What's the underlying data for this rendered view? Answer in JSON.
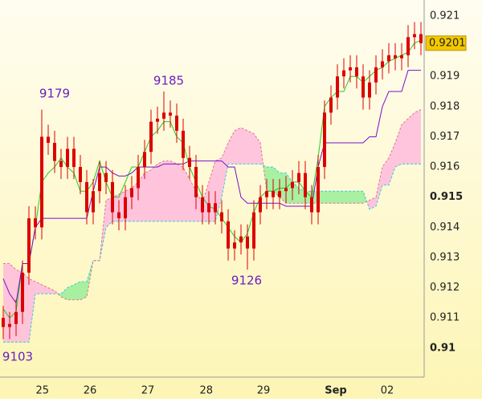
{
  "chart_data": {
    "type": "candlestick",
    "open": [
      0.911,
      0.9107,
      0.9108,
      0.9112,
      0.9125,
      0.9143,
      0.914,
      0.917,
      0.9168,
      0.9162,
      0.916,
      0.9166,
      0.916,
      0.9155,
      0.9145,
      0.9152,
      0.9158,
      0.9155,
      0.9145,
      0.9143,
      0.915,
      0.9153,
      0.916,
      0.9165,
      0.9175,
      0.9176,
      0.9178,
      0.9177,
      0.9172,
      0.9163,
      0.916,
      0.915,
      0.9145,
      0.9148,
      0.9145,
      0.9142,
      0.9133,
      0.9135,
      0.9137,
      0.9133,
      0.9145,
      0.915,
      0.9152,
      0.915,
      0.9152,
      0.9153,
      0.9155,
      0.9158,
      0.915,
      0.9145,
      0.916,
      0.9178,
      0.9183,
      0.919,
      0.9192,
      0.9193,
      0.919,
      0.9183,
      0.9188,
      0.9193,
      0.9195,
      0.9197,
      0.9196,
      0.9197,
      0.9203,
      0.9204
    ],
    "high": [
      0.9114,
      0.9112,
      0.9116,
      0.9129,
      0.9147,
      0.9147,
      0.9179,
      0.9174,
      0.9172,
      0.9166,
      0.917,
      0.917,
      0.9164,
      0.9159,
      0.9156,
      0.9162,
      0.9162,
      0.9159,
      0.9149,
      0.9154,
      0.9157,
      0.9164,
      0.9169,
      0.9179,
      0.918,
      0.9185,
      0.9182,
      0.9181,
      0.9176,
      0.9167,
      0.9164,
      0.9154,
      0.9152,
      0.9152,
      0.9149,
      0.9146,
      0.9139,
      0.9141,
      0.9141,
      0.9149,
      0.9154,
      0.9156,
      0.9156,
      0.9156,
      0.9157,
      0.9159,
      0.9162,
      0.9162,
      0.9154,
      0.9164,
      0.9182,
      0.9187,
      0.9194,
      0.9196,
      0.9197,
      0.9197,
      0.9194,
      0.9192,
      0.9197,
      0.9199,
      0.9201,
      0.9201,
      0.9201,
      0.9207,
      0.9208,
      0.9208
    ],
    "low": [
      0.9103,
      0.9103,
      0.9104,
      0.9108,
      0.9121,
      0.9136,
      0.9136,
      0.9164,
      0.9158,
      0.9156,
      0.9156,
      0.9156,
      0.9151,
      0.9141,
      0.9141,
      0.9148,
      0.9151,
      0.9141,
      0.9139,
      0.9139,
      0.9146,
      0.9149,
      0.9156,
      0.9161,
      0.9171,
      0.9172,
      0.9173,
      0.9168,
      0.9159,
      0.9156,
      0.9146,
      0.9141,
      0.9141,
      0.9141,
      0.9138,
      0.9129,
      0.9129,
      0.9131,
      0.9126,
      0.9129,
      0.9141,
      0.9146,
      0.9146,
      0.9146,
      0.9148,
      0.9149,
      0.9151,
      0.9146,
      0.9141,
      0.9141,
      0.9156,
      0.9174,
      0.9179,
      0.9186,
      0.9188,
      0.9186,
      0.9179,
      0.9179,
      0.9184,
      0.9189,
      0.9191,
      0.9192,
      0.9192,
      0.9193,
      0.9199,
      0.9197
    ],
    "close": [
      0.9107,
      0.9108,
      0.9112,
      0.9125,
      0.9143,
      0.914,
      0.917,
      0.9168,
      0.9162,
      0.916,
      0.9166,
      0.916,
      0.9155,
      0.9145,
      0.9152,
      0.9158,
      0.9155,
      0.9145,
      0.9143,
      0.915,
      0.9153,
      0.916,
      0.9165,
      0.9175,
      0.9176,
      0.9178,
      0.9177,
      0.9172,
      0.9163,
      0.916,
      0.915,
      0.9145,
      0.9148,
      0.9145,
      0.9142,
      0.9133,
      0.9135,
      0.9137,
      0.9133,
      0.9145,
      0.915,
      0.9152,
      0.915,
      0.9152,
      0.9153,
      0.9155,
      0.9158,
      0.915,
      0.9145,
      0.916,
      0.9178,
      0.9183,
      0.919,
      0.9192,
      0.9193,
      0.919,
      0.9183,
      0.9188,
      0.9193,
      0.9195,
      0.9197,
      0.9196,
      0.9197,
      0.9203,
      0.9204,
      0.9201
    ],
    "candle_color": "#dd0000",
    "lines": [
      {
        "color": "#22cc22",
        "values": [
          0.9113,
          0.911,
          0.9112,
          0.9128,
          0.9128,
          0.914,
          0.9155,
          0.9158,
          0.916,
          0.9163,
          0.916,
          0.9158,
          0.9152,
          0.9152,
          0.9155,
          0.9162,
          0.9155,
          0.915,
          0.915,
          0.9155,
          0.916,
          0.916,
          0.9165,
          0.917,
          0.9172,
          0.9175,
          0.9175,
          0.917,
          0.9168,
          0.916,
          0.9155,
          0.915,
          0.9147,
          0.9146,
          0.9143,
          0.914,
          0.9137,
          0.9135,
          0.9138,
          0.9145,
          0.915,
          0.9152,
          0.9152,
          0.9153,
          0.9153,
          0.9155,
          0.9155,
          0.9152,
          0.915,
          0.9163,
          0.918,
          0.9183,
          0.9185,
          0.9185,
          0.919,
          0.919,
          0.9188,
          0.919,
          0.9192,
          0.9193,
          0.9195,
          0.9196,
          0.9197,
          0.9198,
          0.9201,
          0.9202
        ]
      },
      {
        "color": "#7711cc",
        "values": [
          0.9123,
          0.9118,
          0.9115,
          0.9128,
          0.9128,
          0.914,
          0.9143,
          0.9143,
          0.9143,
          0.9143,
          0.9143,
          0.9143,
          0.9143,
          0.9143,
          0.9152,
          0.916,
          0.916,
          0.9158,
          0.9157,
          0.9157,
          0.9158,
          0.916,
          0.916,
          0.916,
          0.916,
          0.9161,
          0.9161,
          0.9161,
          0.9161,
          0.9162,
          0.9162,
          0.9162,
          0.9162,
          0.9162,
          0.9162,
          0.916,
          0.916,
          0.915,
          0.9148,
          0.9148,
          0.9148,
          0.9148,
          0.9148,
          0.9148,
          0.9147,
          0.9147,
          0.9147,
          0.9147,
          0.9147,
          0.916,
          0.9168,
          0.9168,
          0.9168,
          0.9168,
          0.9168,
          0.9168,
          0.9168,
          0.917,
          0.917,
          0.918,
          0.9185,
          0.9185,
          0.9185,
          0.9192,
          0.9192,
          0.9192
        ]
      }
    ],
    "cloud": {
      "span_a": {
        "color": "#33ccdd",
        "values": [
          0.9102,
          0.9102,
          0.9102,
          0.9102,
          0.9102,
          0.9118,
          0.9118,
          0.9118,
          0.9118,
          0.9118,
          0.912,
          0.9121,
          0.9122,
          0.9122,
          0.9129,
          0.9129,
          0.914,
          0.9142,
          0.9142,
          0.9142,
          0.9142,
          0.9142,
          0.9142,
          0.9142,
          0.9142,
          0.9142,
          0.9142,
          0.9142,
          0.9142,
          0.9142,
          0.9142,
          0.9142,
          0.9142,
          0.9142,
          0.915,
          0.9161,
          0.9161,
          0.9161,
          0.9161,
          0.9161,
          0.9161,
          0.916,
          0.916,
          0.9158,
          0.9158,
          0.9155,
          0.9153,
          0.9152,
          0.9152,
          0.9152,
          0.9152,
          0.9152,
          0.9152,
          0.9152,
          0.9152,
          0.9152,
          0.9152,
          0.9146,
          0.9147,
          0.9154,
          0.9154,
          0.916,
          0.9161,
          0.9161,
          0.9161,
          0.9161
        ]
      },
      "span_b": {
        "color": "#dd7799",
        "values": [
          0.9128,
          0.9128,
          0.9126,
          0.9125,
          0.9123,
          0.9122,
          0.9121,
          0.912,
          0.9119,
          0.9117,
          0.9116,
          0.9116,
          0.9116,
          0.9117,
          0.9129,
          0.9129,
          0.9149,
          0.915,
          0.9151,
          0.9152,
          0.9153,
          0.9155,
          0.9158,
          0.9159,
          0.9161,
          0.9162,
          0.9162,
          0.9161,
          0.916,
          0.9156,
          0.9152,
          0.9148,
          0.9155,
          0.9162,
          0.9163,
          0.9168,
          0.9172,
          0.9173,
          0.9172,
          0.9171,
          0.9168,
          0.9152,
          0.9152,
          0.915,
          0.9148,
          0.9148,
          0.9148,
          0.9148,
          0.9148,
          0.9148,
          0.9148,
          0.9148,
          0.9148,
          0.9148,
          0.9148,
          0.9148,
          0.9148,
          0.9149,
          0.915,
          0.916,
          0.9163,
          0.9168,
          0.9174,
          0.9176,
          0.9178,
          0.9179
        ]
      },
      "rising_color": "#99ee99",
      "falling_color": "#ffbbdd"
    },
    "xlim": [
      -0.5,
      65.5
    ],
    "xticks": [
      {
        "value": 6.1,
        "label": "25"
      },
      {
        "value": 13.5,
        "label": "26"
      },
      {
        "value": 22.5,
        "label": "27"
      },
      {
        "value": 31.6,
        "label": "28"
      },
      {
        "value": 40.5,
        "label": "29"
      },
      {
        "value": 51.75,
        "label": "Sep"
      },
      {
        "value": 59.75,
        "label": "02"
      }
    ],
    "ylim": [
      0.90904,
      0.92153
    ],
    "yticks": [
      0.91,
      0.911,
      0.912,
      0.913,
      0.914,
      0.915,
      0.916,
      0.917,
      0.918,
      0.919,
      0.921
    ],
    "grid": true,
    "last_price": 0.9201,
    "annotations": [
      "9179",
      "9185",
      "9126",
      "9103"
    ]
  }
}
